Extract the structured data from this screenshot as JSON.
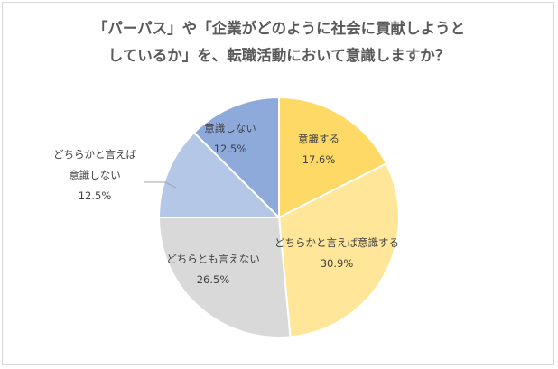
{
  "chart_data": {
    "type": "pie",
    "title_lines": [
      "「パーパス」や「企業がどのように社会に貢献しようと",
      "しているか」を、転職活動において意識しますか？"
    ],
    "slices": [
      {
        "label": "意識する",
        "value": 17.6,
        "value_label": "17.6%",
        "color": "#ffd966"
      },
      {
        "label": "どちらかと言えば意識する",
        "value": 30.9,
        "value_label": "30.9%",
        "color": "#ffe699"
      },
      {
        "label": "どちらとも言えない",
        "value": 26.5,
        "value_label": "26.5%",
        "color": "#d9d9d9"
      },
      {
        "label": "どちらかと言えば\n意識しない",
        "value": 12.5,
        "value_label": "12.5%",
        "color": "#b4c7e7"
      },
      {
        "label": "意識しない",
        "value": 12.5,
        "value_label": "12.5%",
        "color": "#8eaadb"
      }
    ]
  }
}
